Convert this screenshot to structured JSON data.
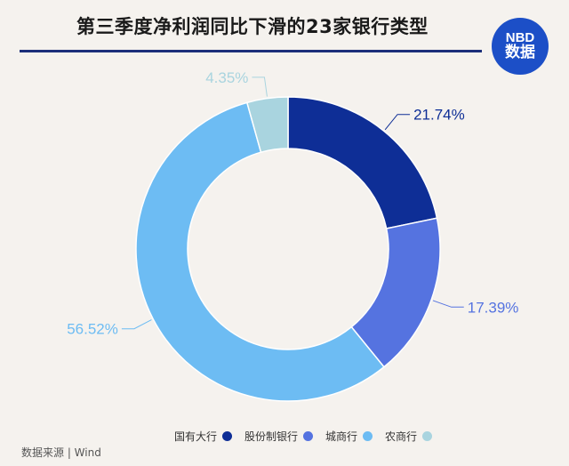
{
  "title": "第三季度净利润同比下滑的23家银行类型",
  "logo": {
    "line1": "NBD",
    "line2": "数据"
  },
  "source": "数据来源 | Wind",
  "chart_data": {
    "type": "pie",
    "title": "第三季度净利润同比下滑的23家银行类型",
    "donut": true,
    "legend_position": "bottom-right",
    "slices": [
      {
        "name": "国有大行",
        "value": 21.74,
        "label": "21.74%",
        "color": "#0e2e96"
      },
      {
        "name": "股份制银行",
        "value": 17.39,
        "label": "17.39%",
        "color": "#5573e0"
      },
      {
        "name": "城商行",
        "value": 56.52,
        "label": "56.52%",
        "color": "#6dbcf3"
      },
      {
        "name": "农商行",
        "value": 4.35,
        "label": "4.35%",
        "color": "#a9d4df"
      }
    ]
  }
}
